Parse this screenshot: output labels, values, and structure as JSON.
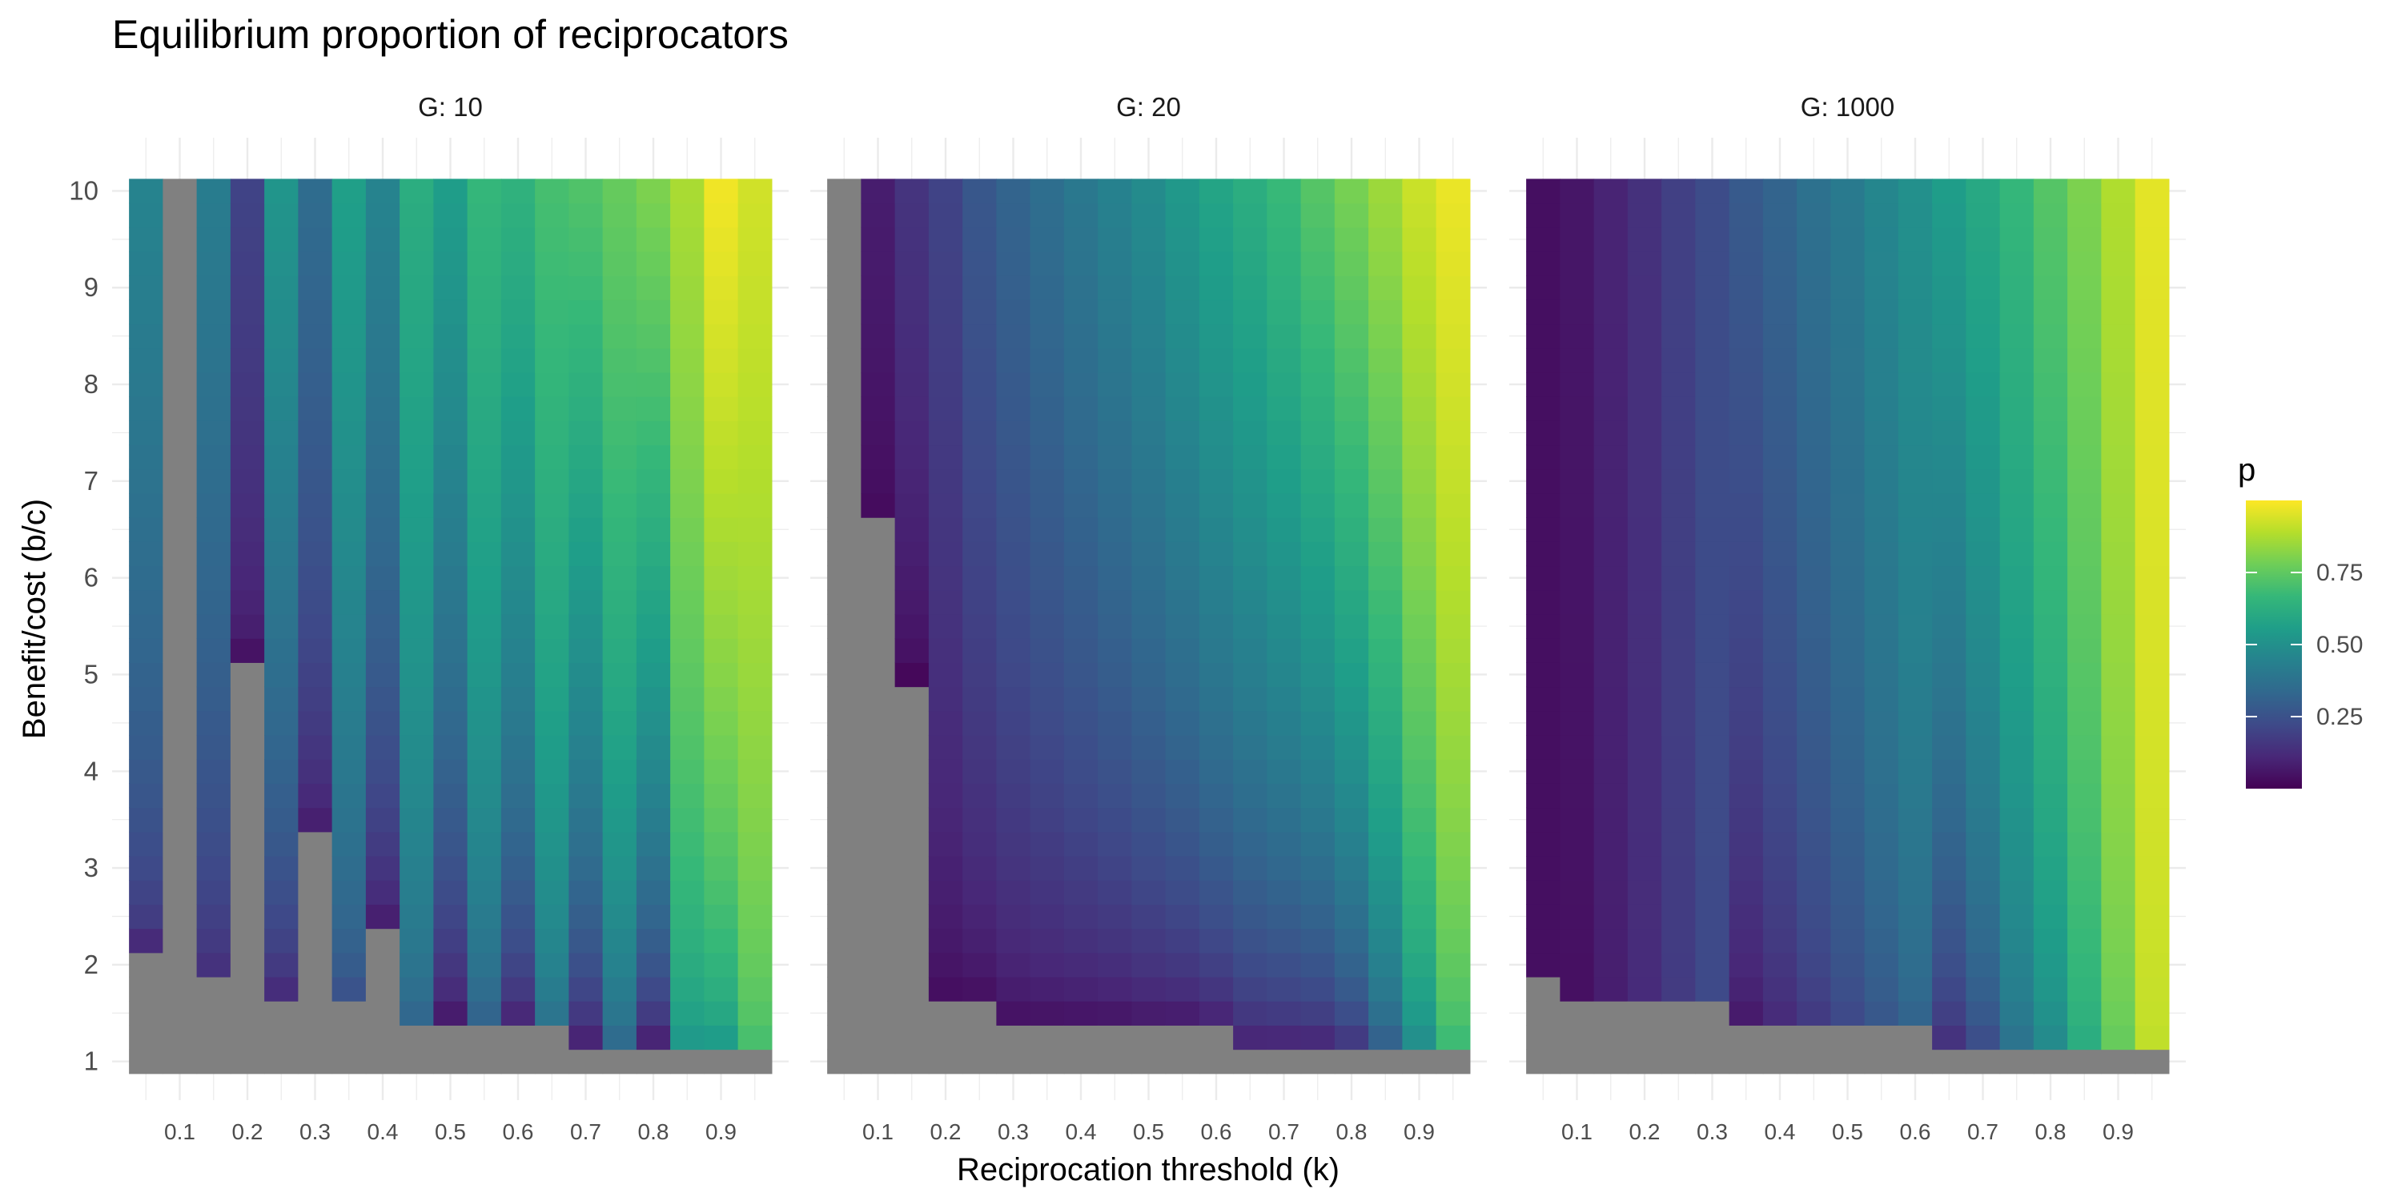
{
  "chart_data": {
    "type": "heatmap",
    "title": "Equilibrium proportion of reciprocators",
    "xlabel": "Reciprocation threshold (k)",
    "ylabel": "Benefit/cost (b/c)",
    "x_ticks": [
      "0.1",
      "0.2",
      "0.3",
      "0.4",
      "0.5",
      "0.6",
      "0.7",
      "0.8",
      "0.9"
    ],
    "y_ticks": [
      "1",
      "2",
      "3",
      "4",
      "5",
      "6",
      "7",
      "8",
      "9",
      "10"
    ],
    "xlim": [
      0.0,
      1.0
    ],
    "ylim": [
      0.6,
      10.55
    ],
    "x": [
      0.05,
      0.1,
      0.15,
      0.2,
      0.25,
      0.3,
      0.35,
      0.4,
      0.45,
      0.5,
      0.55,
      0.6,
      0.65,
      0.7,
      0.75,
      0.8,
      0.85,
      0.9,
      0.95
    ],
    "y_range": [
      1,
      10
    ],
    "y_step": 0.25,
    "na_color": "#808080",
    "legend": {
      "title": "p",
      "breaks": [
        "0.25",
        "0.50",
        "0.75"
      ],
      "range": [
        0.0,
        1.0
      ],
      "colors": [
        "#440154",
        "#482878",
        "#3e4a89",
        "#31688e",
        "#26828e",
        "#1f9e89",
        "#35b779",
        "#6ece58",
        "#b5de2b",
        "#fde725"
      ]
    },
    "panels": [
      {
        "name": "G: 10",
        "columns": [
          {
            "k": 0.05,
            "y_min": 2.25,
            "p_top": 0.45,
            "p_bottom": 0.12
          },
          {
            "k": 0.1,
            "y_min": null,
            "p_top": null,
            "p_bottom": null
          },
          {
            "k": 0.15,
            "y_min": 1.85,
            "p_top": 0.42,
            "p_bottom": 0.1
          },
          {
            "k": 0.2,
            "y_min": 5.25,
            "p_top": 0.2,
            "p_bottom": 0.05
          },
          {
            "k": 0.25,
            "y_min": 1.65,
            "p_top": 0.52,
            "p_bottom": 0.08
          },
          {
            "k": 0.3,
            "y_min": 3.4,
            "p_top": 0.35,
            "p_bottom": 0.05
          },
          {
            "k": 0.35,
            "y_min": 1.65,
            "p_top": 0.56,
            "p_bottom": 0.22
          },
          {
            "k": 0.4,
            "y_min": 2.4,
            "p_top": 0.45,
            "p_bottom": 0.04
          },
          {
            "k": 0.45,
            "y_min": 1.4,
            "p_top": 0.62,
            "p_bottom": 0.3
          },
          {
            "k": 0.5,
            "y_min": 1.4,
            "p_top": 0.55,
            "p_bottom": 0.02
          },
          {
            "k": 0.55,
            "y_min": 1.4,
            "p_top": 0.66,
            "p_bottom": 0.28
          },
          {
            "k": 0.6,
            "y_min": 1.4,
            "p_top": 0.64,
            "p_bottom": 0.05
          },
          {
            "k": 0.65,
            "y_min": 1.4,
            "p_top": 0.7,
            "p_bottom": 0.35
          },
          {
            "k": 0.7,
            "y_min": 1.15,
            "p_top": 0.72,
            "p_bottom": 0.03
          },
          {
            "k": 0.75,
            "y_min": 1.15,
            "p_top": 0.76,
            "p_bottom": 0.3
          },
          {
            "k": 0.8,
            "y_min": 1.15,
            "p_top": 0.8,
            "p_bottom": 0.02
          },
          {
            "k": 0.85,
            "y_min": 1.15,
            "p_top": 0.87,
            "p_bottom": 0.5
          },
          {
            "k": 0.9,
            "y_min": 1.15,
            "p_top": 0.98,
            "p_bottom": 0.5
          },
          {
            "k": 0.95,
            "y_min": 1.15,
            "p_top": 0.93,
            "p_bottom": 0.68
          }
        ]
      },
      {
        "name": "G: 20",
        "columns": [
          {
            "k": 0.05,
            "y_min": null,
            "p_top": null,
            "p_bottom": null
          },
          {
            "k": 0.1,
            "y_min": 6.65,
            "p_top": 0.08,
            "p_bottom": 0.02
          },
          {
            "k": 0.15,
            "y_min": 5.0,
            "p_top": 0.15,
            "p_bottom": 0.02
          },
          {
            "k": 0.2,
            "y_min": 1.65,
            "p_top": 0.2,
            "p_bottom": 0.02
          },
          {
            "k": 0.25,
            "y_min": 1.65,
            "p_top": 0.27,
            "p_bottom": 0.02
          },
          {
            "k": 0.3,
            "y_min": 1.4,
            "p_top": 0.32,
            "p_bottom": 0.02
          },
          {
            "k": 0.35,
            "y_min": 1.4,
            "p_top": 0.36,
            "p_bottom": 0.02
          },
          {
            "k": 0.4,
            "y_min": 1.4,
            "p_top": 0.4,
            "p_bottom": 0.02
          },
          {
            "k": 0.45,
            "y_min": 1.4,
            "p_top": 0.44,
            "p_bottom": 0.02
          },
          {
            "k": 0.5,
            "y_min": 1.4,
            "p_top": 0.48,
            "p_bottom": 0.03
          },
          {
            "k": 0.55,
            "y_min": 1.4,
            "p_top": 0.53,
            "p_bottom": 0.03
          },
          {
            "k": 0.6,
            "y_min": 1.4,
            "p_top": 0.58,
            "p_bottom": 0.05
          },
          {
            "k": 0.65,
            "y_min": 1.15,
            "p_top": 0.62,
            "p_bottom": 0.05
          },
          {
            "k": 0.7,
            "y_min": 1.15,
            "p_top": 0.67,
            "p_bottom": 0.05
          },
          {
            "k": 0.75,
            "y_min": 1.15,
            "p_top": 0.73,
            "p_bottom": 0.05
          },
          {
            "k": 0.8,
            "y_min": 1.15,
            "p_top": 0.79,
            "p_bottom": 0.1
          },
          {
            "k": 0.85,
            "y_min": 1.15,
            "p_top": 0.85,
            "p_bottom": 0.25
          },
          {
            "k": 0.9,
            "y_min": 1.15,
            "p_top": 0.92,
            "p_bottom": 0.45
          },
          {
            "k": 0.95,
            "y_min": 1.15,
            "p_top": 0.97,
            "p_bottom": 0.65
          }
        ]
      },
      {
        "name": "G: 1000",
        "columns": [
          {
            "k": 0.05,
            "y_min": 1.9,
            "p_top": 0.04,
            "p_bottom": 0.04
          },
          {
            "k": 0.1,
            "y_min": 1.65,
            "p_top": 0.06,
            "p_bottom": 0.04
          },
          {
            "k": 0.15,
            "y_min": 1.65,
            "p_top": 0.1,
            "p_bottom": 0.08
          },
          {
            "k": 0.2,
            "y_min": 1.65,
            "p_top": 0.14,
            "p_bottom": 0.12
          },
          {
            "k": 0.25,
            "y_min": 1.65,
            "p_top": 0.19,
            "p_bottom": 0.17
          },
          {
            "k": 0.3,
            "y_min": 1.65,
            "p_top": 0.23,
            "p_bottom": 0.22
          },
          {
            "k": 0.35,
            "y_min": 1.4,
            "p_top": 0.28,
            "p_bottom": 0.05
          },
          {
            "k": 0.4,
            "y_min": 1.4,
            "p_top": 0.32,
            "p_bottom": 0.1
          },
          {
            "k": 0.45,
            "y_min": 1.4,
            "p_top": 0.37,
            "p_bottom": 0.15
          },
          {
            "k": 0.5,
            "y_min": 1.4,
            "p_top": 0.41,
            "p_bottom": 0.2
          },
          {
            "k": 0.55,
            "y_min": 1.4,
            "p_top": 0.46,
            "p_bottom": 0.25
          },
          {
            "k": 0.6,
            "y_min": 1.4,
            "p_top": 0.5,
            "p_bottom": 0.3
          },
          {
            "k": 0.65,
            "y_min": 1.15,
            "p_top": 0.55,
            "p_bottom": 0.1
          },
          {
            "k": 0.7,
            "y_min": 1.15,
            "p_top": 0.6,
            "p_bottom": 0.2
          },
          {
            "k": 0.75,
            "y_min": 1.15,
            "p_top": 0.66,
            "p_bottom": 0.35
          },
          {
            "k": 0.8,
            "y_min": 1.15,
            "p_top": 0.73,
            "p_bottom": 0.45
          },
          {
            "k": 0.85,
            "y_min": 1.15,
            "p_top": 0.8,
            "p_bottom": 0.6
          },
          {
            "k": 0.9,
            "y_min": 1.15,
            "p_top": 0.88,
            "p_bottom": 0.75
          },
          {
            "k": 0.95,
            "y_min": 1.15,
            "p_top": 0.96,
            "p_bottom": 0.9
          }
        ]
      }
    ]
  }
}
